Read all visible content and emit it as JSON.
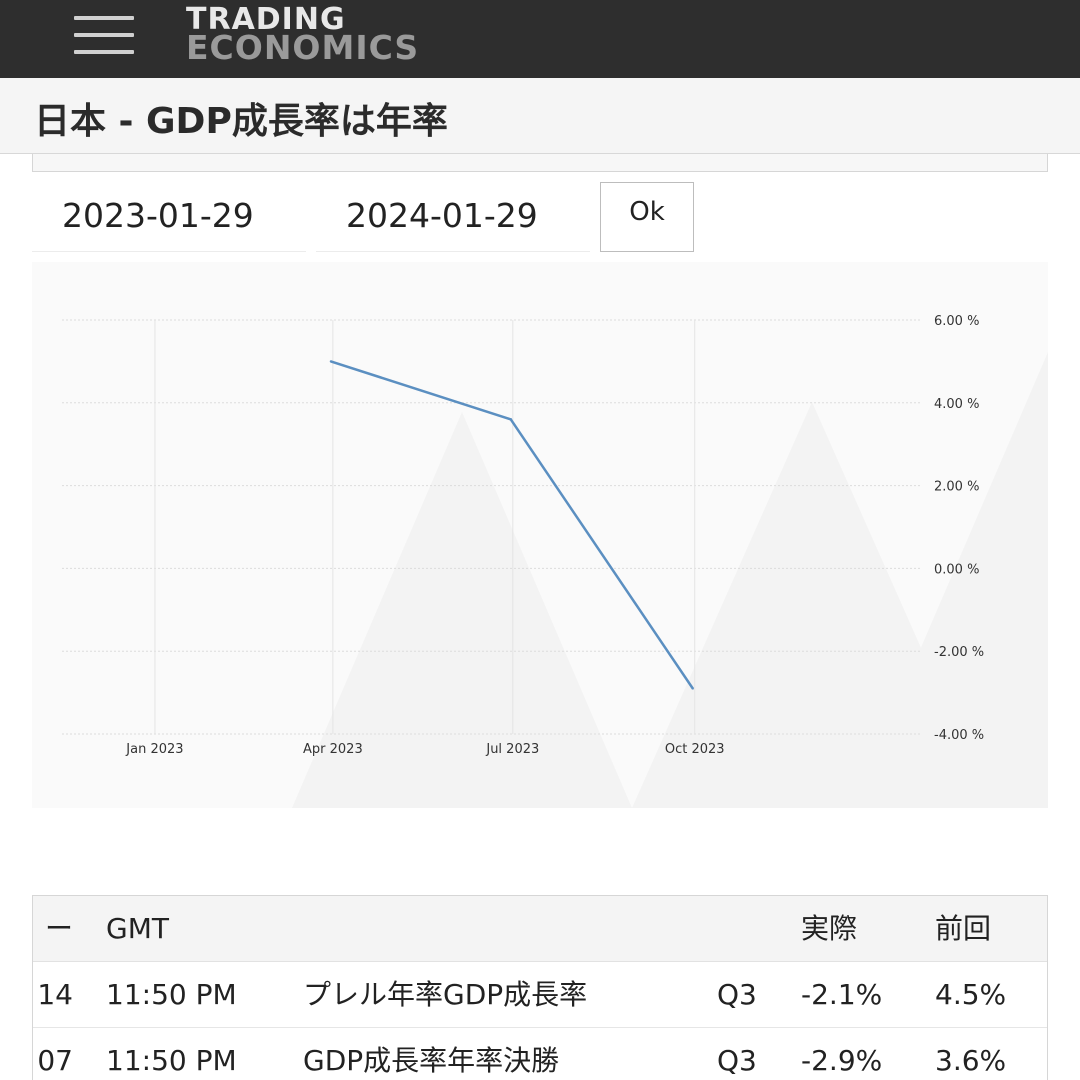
{
  "header": {
    "logo_line1": "TRADING",
    "logo_line2": "ECONOMICS",
    "menu_icon": "hamburger-menu-icon"
  },
  "page": {
    "title": "日本 - GDP成長率は年率"
  },
  "date_range": {
    "start": "2023-01-29",
    "end": "2024-01-29",
    "ok_label": "Ok"
  },
  "chart_data": {
    "type": "line",
    "x_ticks": [
      "Jan 2023",
      "Apr 2023",
      "Jul 2023",
      "Oct 2023"
    ],
    "y_ticks": [
      "6.00 %",
      "4.00 %",
      "2.00 %",
      "0.00 %",
      "-2.00 %",
      "-4.00 %"
    ],
    "ylim": [
      -4,
      6
    ],
    "xlim": [
      "2022-11-15",
      "2024-01-29"
    ],
    "series": [
      {
        "color": "#5b8fc1",
        "points": [
          {
            "x": "2023-03-31",
            "y": 5.0
          },
          {
            "x": "2023-06-30",
            "y": 3.6
          },
          {
            "x": "2023-09-30",
            "y": -2.9
          }
        ]
      }
    ],
    "grid": true,
    "y_axis_side": "right"
  },
  "calendar": {
    "headers": {
      "date": "ー",
      "time": "GMT",
      "event": "",
      "reference": "",
      "actual": "実際",
      "previous": "前回"
    },
    "rows": [
      {
        "date": "14",
        "time": "11:50 PM",
        "event": "プレル年率GDP成長率",
        "reference": "Q3",
        "actual": "-2.1%",
        "previous": "4.5%"
      },
      {
        "date": "07",
        "time": "11:50 PM",
        "event": "GDP成長率年率決勝",
        "reference": "Q3",
        "actual": "-2.9%",
        "previous": "3.6%"
      }
    ]
  }
}
